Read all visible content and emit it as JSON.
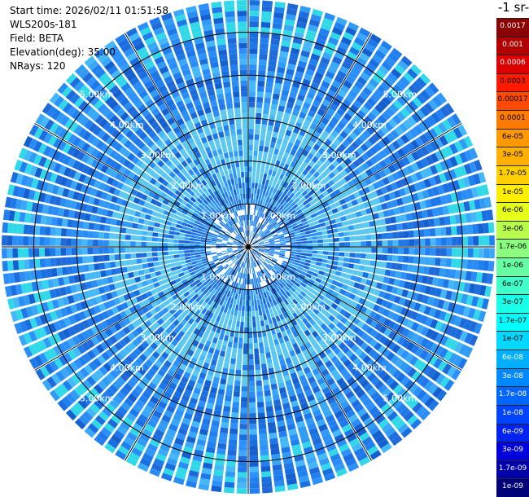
{
  "header": {
    "start_time": "Start time: 2026/02/11 01:51:58",
    "instrument": "WLS200s-181",
    "field": "Field: BETA",
    "elevation": "Elevation(deg): 35.00",
    "nrays": "NRays: 120",
    "unit_fragment": "-1 sr-"
  },
  "chart_data": {
    "type": "heatmap",
    "subtype": "polar-ppi",
    "field": "BETA",
    "elevation_deg": 35.0,
    "n_rays": 120,
    "range_rings_km": [
      1,
      2,
      3,
      4,
      5
    ],
    "range_ring_labels": [
      "1.00km",
      "2.00km",
      "3.00km",
      "4.00km",
      "5.00km"
    ],
    "max_range_km": 5.75,
    "colorbar": {
      "labels": [
        "0.0017",
        "0.001",
        "0.0006",
        "0.0003",
        "0.00017",
        "0.0001",
        "6e-05",
        "3e-05",
        "1.7e-05",
        "1e-05",
        "6e-06",
        "3e-06",
        "1.7e-06",
        "1e-06",
        "6e-07",
        "3e-07",
        "1.7e-07",
        "1e-07",
        "6e-08",
        "3e-08",
        "1.7e-08",
        "1e-08",
        "6e-09",
        "3e-09",
        "1.7e-09",
        "1e-09"
      ],
      "colors": [
        "#8b0000",
        "#b20000",
        "#dd0000",
        "#ff1a00",
        "#ff4a00",
        "#ff7a00",
        "#ff9900",
        "#ffb000",
        "#ffd000",
        "#ffee00",
        "#e6ff1a",
        "#b8ff4d",
        "#8cff80",
        "#66ffa3",
        "#40ffc8",
        "#1affe8",
        "#00ffff",
        "#00d8ff",
        "#00b0ff",
        "#0088ff",
        "#0066ff",
        "#0044ff",
        "#0022ee",
        "#0000dd",
        "#0000aa",
        "#000077"
      ]
    }
  }
}
